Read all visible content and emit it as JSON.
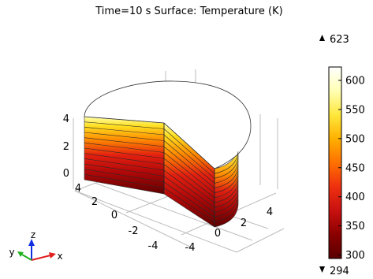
{
  "plot": {
    "title": "Time=10 s   Surface: Temperature (K)"
  },
  "chart_data": {
    "type": "heatmap",
    "title": "Time=10 s   Surface: Temperature (K)",
    "time": "10 s",
    "quantity": "Temperature",
    "unit": "K",
    "value_max": 623,
    "value_min": 294,
    "max_label": "623",
    "min_label": "294",
    "colorbar": {
      "ticks": [
        300,
        350,
        400,
        450,
        500,
        550,
        600
      ],
      "tick_labels": [
        "300",
        "350",
        "400",
        "450",
        "500",
        "550",
        "600"
      ],
      "colormap": [
        "#5a0000",
        "#8b0000",
        "#c81010",
        "#ee3010",
        "#ff7000",
        "#ffb000",
        "#ffe83c",
        "#ffffb4",
        "#ffffff"
      ]
    },
    "axes": {
      "x": {
        "label": "x",
        "ticks": [
          "-4",
          "-2",
          "0",
          "2",
          "4"
        ]
      },
      "y": {
        "label": "y",
        "ticks": [
          "4",
          "2",
          "0",
          "-2",
          "-4"
        ]
      },
      "z": {
        "label": "z",
        "ticks": [
          "4",
          "2",
          "0"
        ]
      }
    },
    "triad": {
      "x_label": "x",
      "y_label": "y",
      "z_label": "z"
    }
  }
}
